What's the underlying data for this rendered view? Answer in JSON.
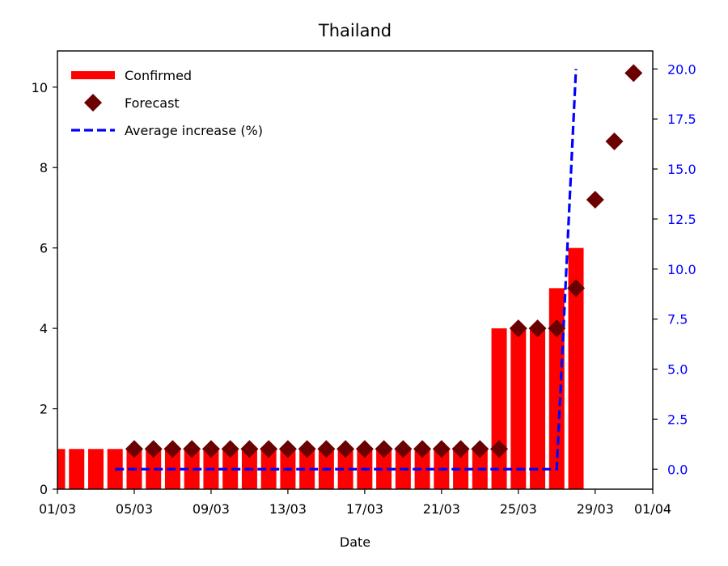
{
  "chart_data": {
    "type": "bar",
    "title": "Thailand",
    "xlabel": "Date",
    "ylabel": "",
    "y2label": "",
    "dates": [
      "01/03",
      "02/03",
      "03/03",
      "04/03",
      "05/03",
      "06/03",
      "07/03",
      "08/03",
      "09/03",
      "10/03",
      "11/03",
      "12/03",
      "13/03",
      "14/03",
      "15/03",
      "16/03",
      "17/03",
      "18/03",
      "19/03",
      "20/03",
      "21/03",
      "22/03",
      "23/03",
      "24/03",
      "25/03",
      "26/03",
      "27/03",
      "28/03",
      "29/03",
      "30/03",
      "31/03",
      "01/04"
    ],
    "x_ticks": [
      "01/03",
      "05/03",
      "09/03",
      "13/03",
      "17/03",
      "21/03",
      "25/03",
      "29/03",
      "01/04"
    ],
    "ylim": [
      0,
      10.9
    ],
    "y_ticks": [
      "0",
      "2",
      "4",
      "6",
      "8",
      "10"
    ],
    "y2lim": [
      -1.0,
      20.9
    ],
    "y2_ticks": [
      "0.0",
      "2.5",
      "5.0",
      "7.5",
      "10.0",
      "12.5",
      "15.0",
      "17.5",
      "20.0"
    ],
    "y2_color": "#0000ff",
    "legend_position": "top-left",
    "series": [
      {
        "name": "Confirmed",
        "kind": "bar",
        "axis": "left",
        "color": "#ff0000",
        "x": [
          "01/03",
          "02/03",
          "03/03",
          "04/03",
          "05/03",
          "06/03",
          "07/03",
          "08/03",
          "09/03",
          "10/03",
          "11/03",
          "12/03",
          "13/03",
          "14/03",
          "15/03",
          "16/03",
          "17/03",
          "18/03",
          "19/03",
          "20/03",
          "21/03",
          "22/03",
          "23/03",
          "24/03",
          "25/03",
          "26/03",
          "27/03",
          "28/03"
        ],
        "values": [
          1,
          1,
          1,
          1,
          1,
          1,
          1,
          1,
          1,
          1,
          1,
          1,
          1,
          1,
          1,
          1,
          1,
          1,
          1,
          1,
          1,
          1,
          1,
          4,
          4,
          4,
          5,
          6
        ]
      },
      {
        "name": "Forecast",
        "kind": "scatter",
        "marker": "diamond",
        "axis": "left",
        "color": "#6b0000",
        "x": [
          "05/03",
          "06/03",
          "07/03",
          "08/03",
          "09/03",
          "10/03",
          "11/03",
          "12/03",
          "13/03",
          "14/03",
          "15/03",
          "16/03",
          "17/03",
          "18/03",
          "19/03",
          "20/03",
          "21/03",
          "22/03",
          "23/03",
          "24/03",
          "25/03",
          "26/03",
          "27/03",
          "28/03",
          "29/03",
          "30/03",
          "31/03"
        ],
        "values": [
          1,
          1,
          1,
          1,
          1,
          1,
          1,
          1,
          1,
          1,
          1,
          1,
          1,
          1,
          1,
          1,
          1,
          1,
          1,
          1,
          4,
          4,
          4,
          5,
          7.2,
          8.65,
          10.35
        ]
      },
      {
        "name": "Average increase (%)",
        "kind": "line",
        "style": "dashed",
        "axis": "right",
        "color": "#0000ff",
        "x": [
          "04/03",
          "05/03",
          "06/03",
          "07/03",
          "08/03",
          "09/03",
          "10/03",
          "11/03",
          "12/03",
          "13/03",
          "14/03",
          "15/03",
          "16/03",
          "17/03",
          "18/03",
          "19/03",
          "20/03",
          "21/03",
          "22/03",
          "23/03",
          "24/03",
          "25/03",
          "26/03",
          "27/03",
          "28/03"
        ],
        "values": [
          0,
          0,
          0,
          0,
          0,
          0,
          0,
          0,
          0,
          0,
          0,
          0,
          0,
          0,
          0,
          0,
          0,
          0,
          0,
          0,
          0,
          0,
          0,
          0,
          20
        ]
      }
    ]
  }
}
